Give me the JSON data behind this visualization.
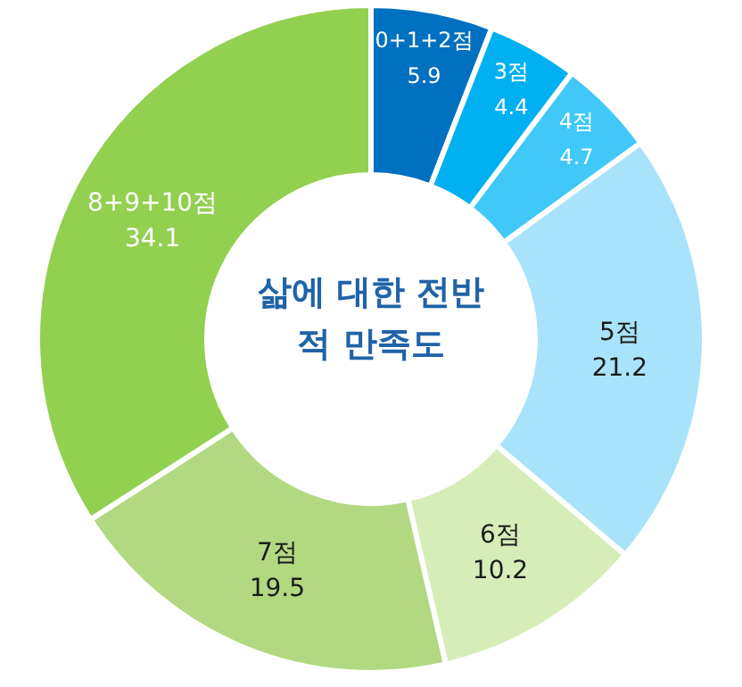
{
  "chart_data": {
    "type": "donut",
    "title": "삶에 대한 전반적 만족도",
    "categories": [
      "0+1+2점",
      "3점",
      "4점",
      "5점",
      "6점",
      "7점",
      "8+9+10점"
    ],
    "values": [
      5.9,
      4.4,
      4.7,
      21.2,
      10.2,
      19.5,
      34.1
    ],
    "colors": [
      "#0070c0",
      "#00b0f0",
      "#3fc8f8",
      "#a9e3fb",
      "#d7edb8",
      "#b2d881",
      "#92d050"
    ],
    "data_labels": true
  }
}
